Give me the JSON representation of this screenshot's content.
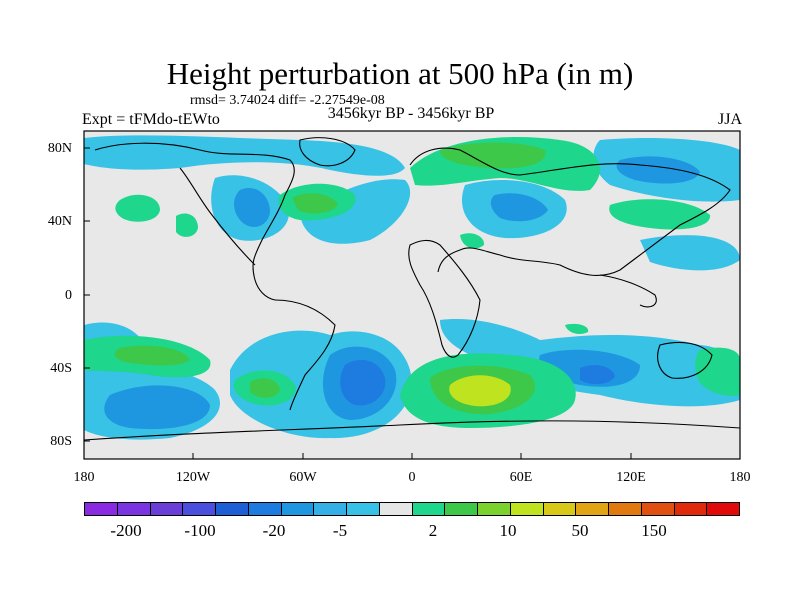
{
  "title": "Height perturbation at 500 hPa (in m)",
  "stats_line": "rmsd= 3.74024 diff= -2.27549e-08",
  "experiment": "Expt = tFMdo-tEWto",
  "period": "3456kyr BP - 3456kyr BP",
  "season": "JJA",
  "lat_ticks": [
    "80N",
    "40N",
    "0",
    "40S",
    "80S"
  ],
  "lon_ticks": [
    "180",
    "120W",
    "60W",
    "0",
    "60E",
    "120E",
    "180"
  ],
  "colorbar": {
    "colors": [
      "#8a2be2",
      "#7b35e0",
      "#6a3fd8",
      "#4b4fde",
      "#1f5fd6",
      "#1e7be0",
      "#1f96e0",
      "#34b0e6",
      "#38c2e6",
      "#e6e6e6",
      "#1ed68c",
      "#3ec84a",
      "#7bd22e",
      "#bfe31f",
      "#d8c818",
      "#e0a414",
      "#e07a10",
      "#e05010",
      "#e02a0c",
      "#e00a0a"
    ],
    "labels": [
      "-200",
      "-100",
      "-20",
      "-5",
      "2",
      "10",
      "50",
      "150"
    ]
  }
}
